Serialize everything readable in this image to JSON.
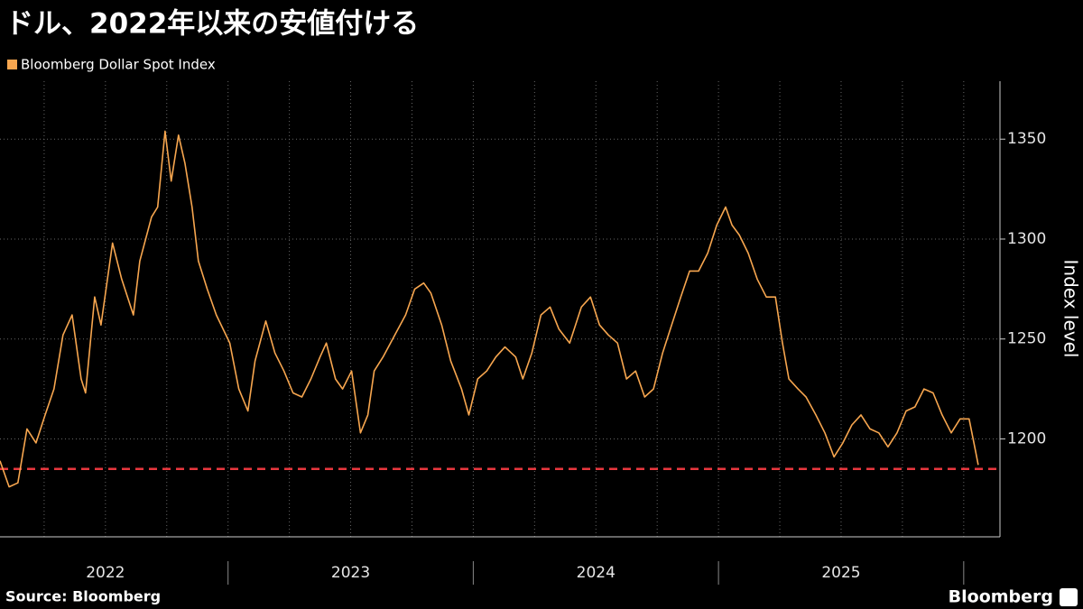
{
  "chart_data": {
    "type": "line",
    "title": "ドル、2022年以来の安値付ける",
    "y_label": "Index level",
    "source": "Source: Bloomberg",
    "logo": "Bloomberg",
    "xlim": [
      2022.07,
      2026.1
    ],
    "xticks": [
      2022,
      2023,
      2024,
      2025
    ],
    "xgrid": [
      2022.25,
      2022.5,
      2022.75,
      2023,
      2023.25,
      2023.5,
      2023.75,
      2024,
      2024.25,
      2024.5,
      2024.75,
      2025,
      2025.25,
      2025.5,
      2025.75,
      2026
    ],
    "ylim": [
      1151,
      1379
    ],
    "yticks": [
      1200,
      1250,
      1300,
      1350
    ],
    "grid": true,
    "hline": {
      "value": 1185,
      "color": "#e8373e"
    },
    "x": [
      2022.07,
      2022.107,
      2022.143,
      2022.18,
      2022.217,
      2022.254,
      2022.29,
      2022.327,
      2022.364,
      2022.401,
      2022.419,
      2022.456,
      2022.482,
      2022.529,
      2022.566,
      2022.614,
      2022.64,
      2022.688,
      2022.713,
      2022.743,
      2022.768,
      2022.798,
      2022.824,
      2022.853,
      2022.879,
      2022.915,
      2022.952,
      2023.007,
      2023.044,
      2023.081,
      2023.11,
      2023.154,
      2023.191,
      2023.228,
      2023.265,
      2023.301,
      2023.338,
      2023.375,
      2023.401,
      2023.438,
      2023.467,
      2023.504,
      2023.54,
      2023.57,
      2023.596,
      2023.632,
      2023.68,
      2023.724,
      2023.761,
      2023.798,
      2023.827,
      2023.871,
      2023.908,
      2023.952,
      2023.982,
      2024.018,
      2024.055,
      2024.092,
      2024.129,
      2024.173,
      2024.202,
      2024.239,
      2024.276,
      2024.313,
      2024.349,
      2024.393,
      2024.441,
      2024.478,
      2024.515,
      2024.551,
      2024.588,
      2024.625,
      2024.662,
      2024.699,
      2024.735,
      2024.772,
      2024.809,
      2024.846,
      2024.882,
      2024.919,
      2024.956,
      2024.993,
      2025.029,
      2025.055,
      2025.085,
      2025.121,
      2025.158,
      2025.195,
      2025.232,
      2025.261,
      2025.287,
      2025.324,
      2025.357,
      2025.397,
      2025.434,
      2025.471,
      2025.507,
      2025.544,
      2025.581,
      2025.618,
      2025.654,
      2025.691,
      2025.728,
      2025.765,
      2025.801,
      2025.838,
      2025.875,
      2025.912,
      2025.949,
      2025.985,
      2026.022,
      2026.048,
      2026.059
    ],
    "series": [
      {
        "name": "Bloomberg Dollar Spot Index",
        "color": "#f7a64f",
        "values": [
          1189,
          1176,
          1178,
          1205,
          1198,
          1212,
          1225,
          1252,
          1262,
          1230,
          1223,
          1271,
          1257,
          1298,
          1280,
          1262,
          1289,
          1311,
          1316,
          1354,
          1329,
          1352,
          1338,
          1316,
          1289,
          1275,
          1262,
          1248,
          1225,
          1214,
          1239,
          1259,
          1243,
          1234,
          1223,
          1221,
          1230,
          1241,
          1248,
          1230,
          1225,
          1234,
          1203,
          1212,
          1234,
          1241,
          1252,
          1262,
          1275,
          1278,
          1273,
          1257,
          1239,
          1225,
          1212,
          1230,
          1234,
          1241,
          1246,
          1241,
          1230,
          1243,
          1262,
          1266,
          1255,
          1248,
          1266,
          1271,
          1257,
          1252,
          1248,
          1230,
          1234,
          1221,
          1225,
          1243,
          1257,
          1271,
          1284,
          1284,
          1293,
          1307,
          1316,
          1307,
          1302,
          1293,
          1280,
          1271,
          1271,
          1248,
          1230,
          1225,
          1221,
          1212,
          1203,
          1191,
          1198,
          1207,
          1212,
          1205,
          1203,
          1196,
          1203,
          1214,
          1216,
          1225,
          1223,
          1212,
          1203,
          1210,
          1210,
          1194,
          1187
        ]
      }
    ]
  }
}
